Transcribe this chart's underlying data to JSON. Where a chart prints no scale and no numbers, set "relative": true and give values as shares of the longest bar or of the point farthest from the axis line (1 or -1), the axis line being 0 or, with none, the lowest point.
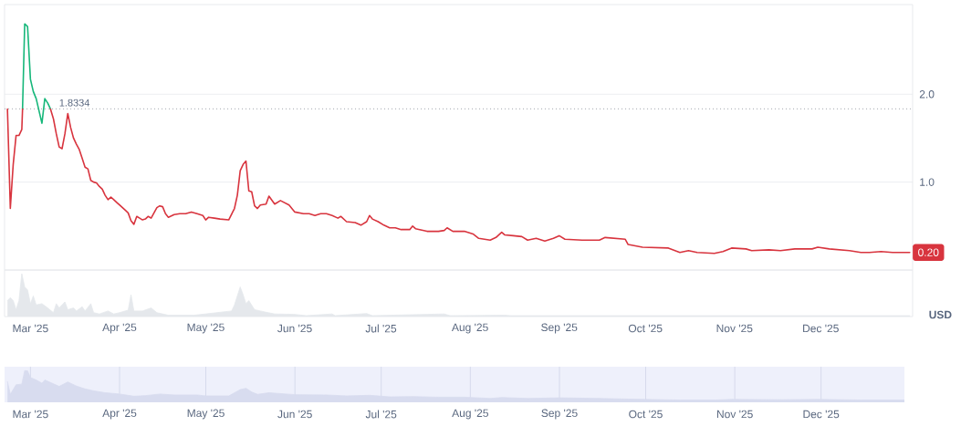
{
  "chart_data": [
    {
      "type": "line",
      "ylabel": "USD",
      "tick_labels": "y",
      "xlim": [
        "2025-02-20",
        "2026-01-02"
      ],
      "ylim": [
        0,
        3.02
      ],
      "yticks": [
        {
          "value": 1,
          "label": "1.0"
        },
        {
          "value": 2,
          "label": "2.0"
        }
      ],
      "grid": "y",
      "ref_lines": [
        {
          "axis": "y",
          "value": 1.8334,
          "label": "1.8334",
          "color": "#a3a8b0",
          "line_style": "dotted"
        }
      ],
      "annotations": [
        {
          "text": "0.20",
          "x": "2026-01-01",
          "y": 0.2
        }
      ],
      "series": [
        {
          "color": "#16b77a",
          "x": [
            "2025-02-26T06:00",
            "2025-02-27",
            "2025-02-28",
            "2025-03-01",
            "2025-03-02",
            "2025-03-03",
            "2025-03-05",
            "2025-03-06",
            "2025-03-07",
            "2025-03-08"
          ],
          "values": [
            1.83,
            2.8,
            2.77,
            2.17,
            2.03,
            1.95,
            1.67,
            1.95,
            1.9,
            1.83
          ]
        },
        {
          "color": "#d8343e",
          "x": [
            "2025-02-21",
            "2025-02-22",
            "2025-02-23",
            "2025-02-24",
            "2025-02-25",
            "2025-02-26",
            "2025-02-26T06:00",
            "2025-03-01",
            "2025-03-08",
            "2025-03-09",
            "2025-03-10",
            "2025-03-11",
            "2025-03-12",
            "2025-03-13",
            "2025-03-14",
            "2025-03-15",
            "2025-03-16",
            "2025-03-17",
            "2025-03-18",
            "2025-03-19",
            "2025-03-20",
            "2025-03-21",
            "2025-03-22",
            "2025-03-23",
            "2025-03-24",
            "2025-03-25",
            "2025-03-26",
            "2025-03-27",
            "2025-03-28",
            "2025-03-29",
            "2025-03-30",
            "2025-03-31",
            "2025-04-01",
            "2025-04-02",
            "2025-04-03",
            "2025-04-04",
            "2025-04-05",
            "2025-04-06",
            "2025-04-07",
            "2025-04-08",
            "2025-04-09",
            "2025-04-10",
            "2025-04-11",
            "2025-04-12",
            "2025-04-13",
            "2025-04-14",
            "2025-04-15",
            "2025-04-16",
            "2025-04-17",
            "2025-04-18",
            "2025-04-20",
            "2025-04-22",
            "2025-04-24",
            "2025-04-26",
            "2025-04-28",
            "2025-04-30",
            "2025-05-01",
            "2025-05-02",
            "2025-05-04",
            "2025-05-06",
            "2025-05-09",
            "2025-05-11",
            "2025-05-12",
            "2025-05-13",
            "2025-05-14",
            "2025-05-15",
            "2025-05-16",
            "2025-05-17",
            "2025-05-18",
            "2025-05-19",
            "2025-05-20",
            "2025-05-22",
            "2025-05-23",
            "2025-05-25",
            "2025-05-27",
            "2025-05-30",
            "2025-06-01",
            "2025-06-04",
            "2025-06-06",
            "2025-06-08",
            "2025-06-10",
            "2025-06-12",
            "2025-06-14",
            "2025-06-16",
            "2025-06-17",
            "2025-06-19",
            "2025-06-22",
            "2025-06-24",
            "2025-06-26",
            "2025-06-27",
            "2025-06-28",
            "2025-06-30",
            "2025-07-02",
            "2025-07-04",
            "2025-07-06",
            "2025-07-08",
            "2025-07-11",
            "2025-07-12",
            "2025-07-13",
            "2025-07-17",
            "2025-07-21",
            "2025-07-23",
            "2025-07-24",
            "2025-07-26",
            "2025-07-30",
            "2025-08-02",
            "2025-08-04",
            "2025-08-08",
            "2025-08-10",
            "2025-08-12",
            "2025-08-13",
            "2025-08-16",
            "2025-08-19",
            "2025-08-21",
            "2025-08-24",
            "2025-08-27",
            "2025-08-30",
            "2025-09-01",
            "2025-09-03",
            "2025-09-09",
            "2025-09-15",
            "2025-09-17",
            "2025-09-24",
            "2025-09-25",
            "2025-09-30",
            "2025-10-09",
            "2025-10-13",
            "2025-10-16",
            "2025-10-19",
            "2025-10-25",
            "2025-10-28",
            "2025-10-31",
            "2025-11-05",
            "2025-11-07",
            "2025-11-13",
            "2025-11-17",
            "2025-11-22",
            "2025-11-28",
            "2025-11-30",
            "2025-12-04",
            "2025-12-11",
            "2025-12-15",
            "2025-12-18",
            "2025-12-22",
            "2025-12-26",
            "2026-01-01"
          ],
          "values": [
            1.83,
            0.7,
            1.2,
            1.53,
            1.53,
            1.6,
            1.83,
            null,
            1.83,
            1.72,
            1.55,
            1.4,
            1.38,
            1.55,
            1.78,
            1.62,
            1.5,
            1.43,
            1.37,
            1.27,
            1.17,
            1.15,
            1.02,
            1.0,
            0.99,
            0.95,
            0.92,
            0.85,
            0.8,
            0.83,
            0.8,
            0.77,
            0.74,
            0.71,
            0.68,
            0.65,
            0.56,
            0.52,
            0.61,
            0.59,
            0.57,
            0.58,
            0.61,
            0.59,
            0.65,
            0.71,
            0.73,
            0.72,
            0.64,
            0.6,
            0.63,
            0.64,
            0.64,
            0.66,
            0.64,
            0.62,
            0.57,
            0.6,
            0.59,
            0.58,
            0.57,
            0.7,
            0.85,
            1.13,
            1.2,
            1.24,
            0.9,
            0.89,
            0.73,
            0.7,
            0.74,
            0.75,
            0.84,
            0.75,
            0.79,
            0.74,
            0.66,
            0.64,
            0.64,
            0.62,
            0.64,
            0.64,
            0.62,
            0.59,
            0.61,
            0.55,
            0.54,
            0.51,
            0.55,
            0.62,
            0.58,
            0.55,
            0.51,
            0.48,
            0.48,
            0.46,
            0.46,
            0.5,
            0.47,
            0.44,
            0.44,
            0.45,
            0.48,
            0.44,
            0.44,
            0.41,
            0.36,
            0.34,
            0.37,
            0.43,
            0.4,
            0.39,
            0.38,
            0.34,
            0.36,
            0.33,
            0.36,
            0.39,
            0.35,
            0.34,
            0.34,
            0.37,
            0.35,
            0.29,
            0.26,
            0.25,
            0.2,
            0.22,
            0.2,
            0.19,
            0.21,
            0.25,
            0.24,
            0.22,
            0.23,
            0.22,
            0.24,
            0.24,
            0.26,
            0.24,
            0.22,
            0.2,
            0.2,
            0.21,
            0.2,
            0.2
          ]
        }
      ]
    },
    {
      "type": "area",
      "relative": true,
      "tick_labels": "x",
      "color": "#e5e8ec",
      "xlim": [
        "2025-02-20",
        "2026-01-02"
      ],
      "xticks": [
        {
          "value": "2025-03-01",
          "label": "Mar '25"
        },
        {
          "value": "2025-04-01",
          "label": "Apr '25"
        },
        {
          "value": "2025-05-01",
          "label": "May '25"
        },
        {
          "value": "2025-06-01",
          "label": "Jun '25"
        },
        {
          "value": "2025-07-01",
          "label": "Jul '25"
        },
        {
          "value": "2025-08-01",
          "label": "Aug '25"
        },
        {
          "value": "2025-09-01",
          "label": "Sep '25"
        },
        {
          "value": "2025-10-01",
          "label": "Oct '25"
        },
        {
          "value": "2025-11-01",
          "label": "Nov '25"
        },
        {
          "value": "2025-12-01",
          "label": "Dec '25"
        }
      ],
      "x": [
        "2025-02-21",
        "2025-02-22",
        "2025-02-23",
        "2025-02-24",
        "2025-02-25",
        "2025-02-26",
        "2025-02-27",
        "2025-02-28",
        "2025-03-01",
        "2025-03-02",
        "2025-03-03",
        "2025-03-05",
        "2025-03-07",
        "2025-03-09",
        "2025-03-10",
        "2025-03-11",
        "2025-03-13",
        "2025-03-14",
        "2025-03-16",
        "2025-03-17",
        "2025-03-19",
        "2025-03-20",
        "2025-03-22",
        "2025-03-23",
        "2025-03-25",
        "2025-03-28",
        "2025-03-30",
        "2025-04-01",
        "2025-04-04",
        "2025-04-05",
        "2025-04-06",
        "2025-04-09",
        "2025-04-12",
        "2025-04-14",
        "2025-04-18",
        "2025-04-27",
        "2025-05-10",
        "2025-05-11",
        "2025-05-13",
        "2025-05-14",
        "2025-05-15",
        "2025-05-16",
        "2025-05-18",
        "2025-05-20",
        "2025-05-22",
        "2025-05-25",
        "2025-06-01",
        "2025-06-05",
        "2025-06-14",
        "2025-06-15",
        "2025-06-26",
        "2025-06-28",
        "2025-07-23",
        "2025-07-25",
        "2025-08-13",
        "2025-08-15",
        "2025-09-25",
        "2026-01-01"
      ],
      "values": [
        0.37,
        0.44,
        0.37,
        0.16,
        0.37,
        1.0,
        0.69,
        0.62,
        0.3,
        0.48,
        0.27,
        0.3,
        0.2,
        0.09,
        0.3,
        0.2,
        0.34,
        0.16,
        0.2,
        0.13,
        0.23,
        0.13,
        0.3,
        0.09,
        0.06,
        0.13,
        0.06,
        0.09,
        0.15,
        0.51,
        0.13,
        0.13,
        0.2,
        0.09,
        0.03,
        0.03,
        0.13,
        0.27,
        0.69,
        0.51,
        0.3,
        0.37,
        0.16,
        0.13,
        0.1,
        0.06,
        0.05,
        0.02,
        0.06,
        0.02,
        0.07,
        0.02,
        0.06,
        0.02,
        0.03,
        0.02,
        0.02,
        0.02
      ]
    },
    {
      "type": "area",
      "relative": true,
      "tick_labels": "x",
      "grid": "x",
      "color": "#d8dcef",
      "xlim": [
        "2025-02-20",
        "2025-12-30"
      ],
      "xticks": [
        {
          "value": "2025-03-01",
          "label": "Mar '25"
        },
        {
          "value": "2025-04-01",
          "label": "Apr '25"
        },
        {
          "value": "2025-05-01",
          "label": "May '25"
        },
        {
          "value": "2025-06-01",
          "label": "Jun '25"
        },
        {
          "value": "2025-07-01",
          "label": "Jul '25"
        },
        {
          "value": "2025-08-01",
          "label": "Aug '25"
        },
        {
          "value": "2025-09-01",
          "label": "Sep '25"
        },
        {
          "value": "2025-10-01",
          "label": "Oct '25"
        },
        {
          "value": "2025-11-01",
          "label": "Nov '25"
        },
        {
          "value": "2025-12-01",
          "label": "Dec '25"
        }
      ],
      "x": [
        "2025-02-21",
        "2025-02-22",
        "2025-02-24",
        "2025-02-26",
        "2025-02-27",
        "2025-02-28",
        "2025-03-01",
        "2025-03-03",
        "2025-03-05",
        "2025-03-06",
        "2025-03-11",
        "2025-03-14",
        "2025-03-17",
        "2025-03-20",
        "2025-03-23",
        "2025-03-27",
        "2025-04-01",
        "2025-04-06",
        "2025-04-10",
        "2025-04-15",
        "2025-04-20",
        "2025-04-28",
        "2025-05-01",
        "2025-05-09",
        "2025-05-13",
        "2025-05-15",
        "2025-05-17",
        "2025-05-19",
        "2025-05-23",
        "2025-06-01",
        "2025-06-12",
        "2025-06-19",
        "2025-06-27",
        "2025-07-04",
        "2025-07-12",
        "2025-07-21",
        "2025-07-30",
        "2025-08-08",
        "2025-08-12",
        "2025-08-21",
        "2025-09-01",
        "2025-09-15",
        "2025-09-25",
        "2025-10-13",
        "2025-10-25",
        "2025-10-31",
        "2025-11-17",
        "2025-11-30",
        "2025-12-15",
        "2025-12-30"
      ],
      "values": [
        0.65,
        0.25,
        0.55,
        0.57,
        1.0,
        0.99,
        0.78,
        0.7,
        0.6,
        0.7,
        0.5,
        0.64,
        0.51,
        0.42,
        0.36,
        0.3,
        0.26,
        0.19,
        0.21,
        0.26,
        0.23,
        0.23,
        0.2,
        0.2,
        0.4,
        0.44,
        0.32,
        0.25,
        0.3,
        0.24,
        0.23,
        0.2,
        0.22,
        0.17,
        0.18,
        0.16,
        0.16,
        0.12,
        0.15,
        0.12,
        0.14,
        0.12,
        0.1,
        0.07,
        0.07,
        0.09,
        0.08,
        0.09,
        0.07,
        0.07
      ]
    }
  ]
}
